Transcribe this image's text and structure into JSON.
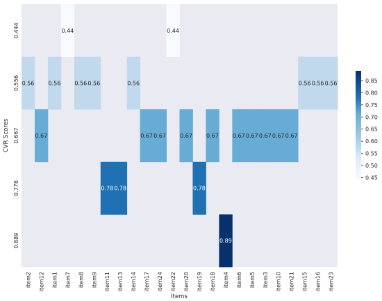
{
  "chart_data": {
    "type": "heatmap",
    "xlabel": "Items",
    "ylabel": "CVR Scores",
    "x_categories": [
      "item2",
      "item12",
      "item1",
      "item7",
      "item8",
      "item9",
      "item11",
      "item13",
      "item14",
      "item17",
      "item24",
      "item22",
      "item20",
      "item19",
      "item18",
      "item4",
      "item6",
      "item5",
      "item3",
      "item10",
      "item21",
      "item15",
      "item16",
      "item23"
    ],
    "y_categories": [
      "0.444",
      "0.556",
      "0.667",
      "0.778",
      "0.889"
    ],
    "cells": [
      {
        "x": "item7",
        "y": "0.444",
        "value": 0.44
      },
      {
        "x": "item22",
        "y": "0.444",
        "value": 0.44
      },
      {
        "x": "item2",
        "y": "0.556",
        "value": 0.56
      },
      {
        "x": "item1",
        "y": "0.556",
        "value": 0.56
      },
      {
        "x": "item8",
        "y": "0.556",
        "value": 0.56
      },
      {
        "x": "item9",
        "y": "0.556",
        "value": 0.56
      },
      {
        "x": "item14",
        "y": "0.556",
        "value": 0.56
      },
      {
        "x": "item15",
        "y": "0.556",
        "value": 0.56
      },
      {
        "x": "item16",
        "y": "0.556",
        "value": 0.56
      },
      {
        "x": "item23",
        "y": "0.556",
        "value": 0.56
      },
      {
        "x": "item12",
        "y": "0.667",
        "value": 0.67
      },
      {
        "x": "item17",
        "y": "0.667",
        "value": 0.67
      },
      {
        "x": "item24",
        "y": "0.667",
        "value": 0.67
      },
      {
        "x": "item20",
        "y": "0.667",
        "value": 0.67
      },
      {
        "x": "item18",
        "y": "0.667",
        "value": 0.67
      },
      {
        "x": "item6",
        "y": "0.667",
        "value": 0.67
      },
      {
        "x": "item5",
        "y": "0.667",
        "value": 0.67
      },
      {
        "x": "item3",
        "y": "0.667",
        "value": 0.67
      },
      {
        "x": "item10",
        "y": "0.667",
        "value": 0.67
      },
      {
        "x": "item21",
        "y": "0.667",
        "value": 0.67
      },
      {
        "x": "item11",
        "y": "0.778",
        "value": 0.78
      },
      {
        "x": "item13",
        "y": "0.778",
        "value": 0.78
      },
      {
        "x": "item19",
        "y": "0.778",
        "value": 0.78
      },
      {
        "x": "item4",
        "y": "0.889",
        "value": 0.89
      }
    ],
    "colorbar": {
      "colormap": "Blues",
      "range": [
        0.44,
        0.89
      ],
      "ticks": [
        "0.45",
        "0.50",
        "0.55",
        "0.60",
        "0.65",
        "0.70",
        "0.75",
        "0.80",
        "0.85"
      ]
    },
    "background_color": "#eaeaf2",
    "grid": false
  }
}
